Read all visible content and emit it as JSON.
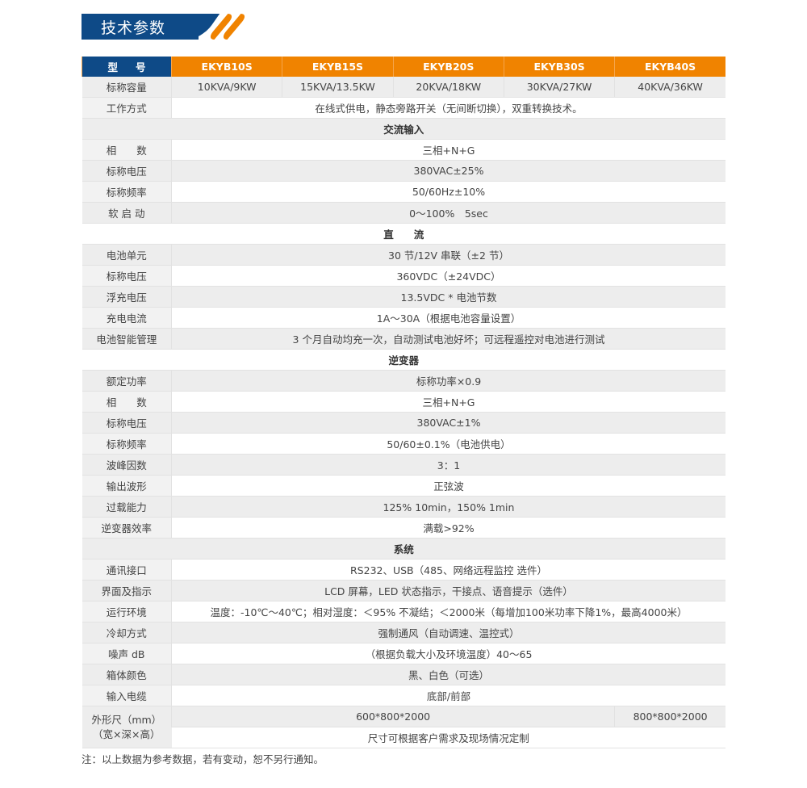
{
  "title": "技术参数",
  "colors": {
    "blue": "#0e4a87",
    "orange": "#f08300"
  },
  "header": {
    "label": "型号",
    "models": [
      "EKYB10S",
      "EKYB15S",
      "EKYB20S",
      "EKYB30S",
      "EKYB40S"
    ]
  },
  "rows": [
    {
      "label": "标称容量",
      "values": [
        "10KVA/9KW",
        "15KVA/13.5KW",
        "20KVA/18KW",
        "30KVA/27KW",
        "40KVA/36KW"
      ]
    },
    {
      "label": "工作方式",
      "value": "在线式供电，静态旁路开关（无间断切换），双重转换技术。"
    },
    {
      "section": "交流输入"
    },
    {
      "label": "相　　数",
      "value": "三相+N+G"
    },
    {
      "label": "标称电压",
      "value": "380VAC±25%"
    },
    {
      "label": "标称频率",
      "value": "50/60Hz±10%"
    },
    {
      "label": "软 启 动",
      "value": "0～100%　5sec"
    },
    {
      "section": "直　　流"
    },
    {
      "label": "电池单元",
      "value": "30 节/12V 串联（±2 节）"
    },
    {
      "label": "标称电压",
      "value": "360VDC（±24VDC）"
    },
    {
      "label": "浮充电压",
      "value": "13.5VDC * 电池节数"
    },
    {
      "label": "充电电流",
      "value": "1A～30A（根据电池容量设置）"
    },
    {
      "label": "电池智能管理",
      "value": "3 个月自动均充一次，自动测试电池好坏；可远程遥控对电池进行测试"
    },
    {
      "section": "逆变器"
    },
    {
      "label": "额定功率",
      "value": "标称功率×0.9"
    },
    {
      "label": "相　　数",
      "value": "三相+N+G"
    },
    {
      "label": "标称电压",
      "value": "380VAC±1%"
    },
    {
      "label": "标称频率",
      "value": "50/60±0.1%（电池供电）"
    },
    {
      "label": "波峰因数",
      "value": "3：1"
    },
    {
      "label": "输出波形",
      "value": "正弦波"
    },
    {
      "label": "过载能力",
      "value": "125% 10min，150% 1min"
    },
    {
      "label": "逆变器效率",
      "value": "满载>92%"
    },
    {
      "section": "系统"
    },
    {
      "label": "通讯接口",
      "value": "RS232、USB（485、网络远程监控 选件）"
    },
    {
      "label": "界面及指示",
      "value": "LCD 屏幕，LED 状态指示，干接点、语音提示（选件）"
    },
    {
      "label": "运行环境",
      "value": "温度：-10℃～40℃；相对湿度：＜95% 不凝结；＜2000米（每增加100米功率下降1%，最高4000米）"
    },
    {
      "label": "冷却方式",
      "value": "强制通风（自动调速、温控式）"
    },
    {
      "label": "噪声 dB",
      "value": "（根据负载大小及环境温度）40～65"
    },
    {
      "label": "箱体颜色",
      "value": "黑、白色（可选）"
    },
    {
      "label": "输入电缆",
      "value": "底部/前部"
    }
  ],
  "dimensions": {
    "label": "外形尺（mm）（宽×深×高）",
    "label_line1": "外形尺（mm）",
    "label_line2": "（宽×深×高）",
    "small": "600*800*2000",
    "large": "800*800*2000",
    "note": "尺寸可根据客户需求及现场情况定制"
  },
  "footnote": "注：以上数据为参考数据，若有变动，恕不另行通知。"
}
